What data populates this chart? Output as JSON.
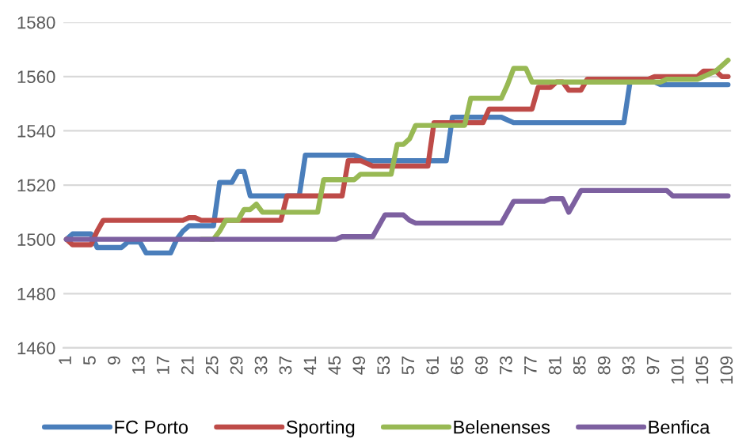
{
  "chart_data": {
    "type": "line",
    "categories": [
      "1",
      null,
      null,
      null,
      "5",
      null,
      null,
      null,
      "9",
      null,
      null,
      null,
      "13",
      null,
      null,
      null,
      "17",
      null,
      null,
      null,
      "21",
      null,
      null,
      null,
      "25",
      null,
      null,
      null,
      "29",
      null,
      null,
      null,
      "33",
      null,
      null,
      null,
      "37",
      null,
      null,
      null,
      "41",
      null,
      null,
      null,
      "45",
      null,
      null,
      null,
      "49",
      null,
      null,
      null,
      "53",
      null,
      null,
      null,
      "57",
      null,
      null,
      null,
      "61",
      null,
      null,
      null,
      "65",
      null,
      null,
      null,
      "69",
      null,
      null,
      null,
      "73",
      null,
      null,
      null,
      "77",
      null,
      null,
      null,
      "81",
      null,
      null,
      null,
      "85",
      null,
      null,
      null,
      "89",
      null,
      null,
      null,
      "93",
      null,
      null,
      null,
      "97",
      null,
      null,
      null,
      "101",
      null,
      null,
      null,
      "105",
      null,
      null,
      null,
      "109"
    ],
    "series": [
      {
        "name": "FC Porto",
        "color": "#4a7ebb",
        "values": [
          1500,
          1502,
          1502,
          1502,
          1502,
          1497,
          1497,
          1497,
          1497,
          1497,
          1499,
          1499,
          1499,
          1495,
          1495,
          1495,
          1495,
          1495,
          1500,
          1503,
          1505,
          1505,
          1505,
          1505,
          1505,
          1521,
          1521,
          1521,
          1525,
          1525,
          1516,
          1516,
          1516,
          1516,
          1516,
          1516,
          1516,
          1516,
          1516,
          1531,
          1531,
          1531,
          1531,
          1531,
          1531,
          1531,
          1531,
          1531,
          1530,
          1529,
          1529,
          1529,
          1529,
          1529,
          1529,
          1529,
          1529,
          1529,
          1529,
          1529,
          1529,
          1529,
          1529,
          1545,
          1545,
          1545,
          1545,
          1545,
          1545,
          1545,
          1545,
          1545,
          1544,
          1543,
          1543,
          1543,
          1543,
          1543,
          1543,
          1543,
          1543,
          1543,
          1543,
          1543,
          1543,
          1543,
          1543,
          1543,
          1543,
          1543,
          1543,
          1543,
          1558,
          1558,
          1558,
          1558,
          1558,
          1557,
          1557,
          1557,
          1557,
          1557,
          1557,
          1557,
          1557,
          1557,
          1557,
          1557,
          1557
        ]
      },
      {
        "name": "Sporting",
        "color": "#be4b48",
        "values": [
          1500,
          1498,
          1498,
          1498,
          1498,
          1503,
          1507,
          1507,
          1507,
          1507,
          1507,
          1507,
          1507,
          1507,
          1507,
          1507,
          1507,
          1507,
          1507,
          1507,
          1508,
          1508,
          1507,
          1507,
          1507,
          1507,
          1507,
          1507,
          1507,
          1507,
          1507,
          1507,
          1507,
          1507,
          1507,
          1507,
          1516,
          1516,
          1516,
          1516,
          1516,
          1516,
          1516,
          1516,
          1516,
          1516,
          1529,
          1529,
          1529,
          1528,
          1527,
          1527,
          1527,
          1527,
          1527,
          1527,
          1527,
          1527,
          1527,
          1527,
          1543,
          1543,
          1543,
          1543,
          1543,
          1543,
          1543,
          1543,
          1543,
          1548,
          1548,
          1548,
          1548,
          1548,
          1548,
          1548,
          1548,
          1556,
          1556,
          1556,
          1558,
          1558,
          1555,
          1555,
          1555,
          1559,
          1559,
          1559,
          1559,
          1559,
          1559,
          1559,
          1559,
          1559,
          1559,
          1559,
          1560,
          1560,
          1560,
          1560,
          1560,
          1560,
          1560,
          1560,
          1562,
          1562,
          1562,
          1560,
          1560
        ]
      },
      {
        "name": "Belenenses",
        "color": "#98b954",
        "values": [
          null,
          null,
          null,
          null,
          null,
          null,
          null,
          null,
          null,
          null,
          null,
          null,
          null,
          null,
          null,
          null,
          null,
          null,
          null,
          null,
          null,
          null,
          1500,
          1500,
          1500,
          1503,
          1507,
          1507,
          1507,
          1511,
          1511,
          1513,
          1510,
          1510,
          1510,
          1510,
          1510,
          1510,
          1510,
          1510,
          1510,
          1510,
          1522,
          1522,
          1522,
          1522,
          1522,
          1522,
          1524,
          1524,
          1524,
          1524,
          1524,
          1524,
          1535,
          1535,
          1537,
          1542,
          1542,
          1542,
          1542,
          1542,
          1542,
          1542,
          1542,
          1542,
          1552,
          1552,
          1552,
          1552,
          1552,
          1552,
          1557,
          1563,
          1563,
          1563,
          1558,
          1558,
          1558,
          1558,
          1558,
          1558,
          1558,
          1558,
          1558,
          1558,
          1558,
          1558,
          1558,
          1558,
          1558,
          1558,
          1558,
          1558,
          1558,
          1558,
          1558,
          1558,
          1559,
          1559,
          1559,
          1559,
          1559,
          1559,
          1560,
          1561,
          1562,
          1564,
          1566
        ]
      },
      {
        "name": "Benfica",
        "color": "#7d60a0",
        "values": [
          1500,
          1500,
          1500,
          1500,
          1500,
          1500,
          1500,
          1500,
          1500,
          1500,
          1500,
          1500,
          1500,
          1500,
          1500,
          1500,
          1500,
          1500,
          1500,
          1500,
          1500,
          1500,
          1500,
          1500,
          1500,
          1500,
          1500,
          1500,
          1500,
          1500,
          1500,
          1500,
          1500,
          1500,
          1500,
          1500,
          1500,
          1500,
          1500,
          1500,
          1500,
          1500,
          1500,
          1500,
          1500,
          1501,
          1501,
          1501,
          1501,
          1501,
          1501,
          1505,
          1509,
          1509,
          1509,
          1509,
          1507,
          1506,
          1506,
          1506,
          1506,
          1506,
          1506,
          1506,
          1506,
          1506,
          1506,
          1506,
          1506,
          1506,
          1506,
          1506,
          1510,
          1514,
          1514,
          1514,
          1514,
          1514,
          1514,
          1515,
          1515,
          1515,
          1510,
          1514,
          1518,
          1518,
          1518,
          1518,
          1518,
          1518,
          1518,
          1518,
          1518,
          1518,
          1518,
          1518,
          1518,
          1518,
          1518,
          1516,
          1516,
          1516,
          1516,
          1516,
          1516,
          1516,
          1516,
          1516,
          1516
        ]
      }
    ],
    "ylim": [
      1460,
      1580
    ],
    "yticks": [
      1460,
      1480,
      1500,
      1520,
      1540,
      1560,
      1580
    ],
    "grid": "y",
    "legend": "bottom",
    "marker": "none",
    "line_style": "solid"
  }
}
